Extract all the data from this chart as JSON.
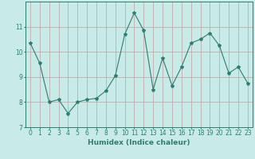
{
  "x": [
    0,
    1,
    2,
    3,
    4,
    5,
    6,
    7,
    8,
    9,
    10,
    11,
    12,
    13,
    14,
    15,
    16,
    17,
    18,
    19,
    20,
    21,
    22,
    23
  ],
  "y": [
    10.35,
    9.55,
    8.0,
    8.1,
    7.55,
    8.0,
    8.1,
    8.15,
    8.45,
    9.05,
    10.7,
    11.55,
    10.85,
    8.5,
    9.75,
    8.65,
    9.4,
    10.35,
    10.5,
    10.75,
    10.25,
    9.15,
    9.4,
    8.75
  ],
  "title": "",
  "xlabel": "Humidex (Indice chaleur)",
  "ylabel": "",
  "ylim": [
    7,
    12
  ],
  "xlim": [
    -0.5,
    23.5
  ],
  "yticks": [
    7,
    8,
    9,
    10,
    11
  ],
  "xticks": [
    0,
    1,
    2,
    3,
    4,
    5,
    6,
    7,
    8,
    9,
    10,
    11,
    12,
    13,
    14,
    15,
    16,
    17,
    18,
    19,
    20,
    21,
    22,
    23
  ],
  "line_color": "#2e7d6e",
  "marker": "*",
  "marker_size": 3,
  "bg_color": "#c8ebe8",
  "grid_color": "#c0a0a8",
  "label_fontsize": 6.5,
  "tick_fontsize": 5.5
}
